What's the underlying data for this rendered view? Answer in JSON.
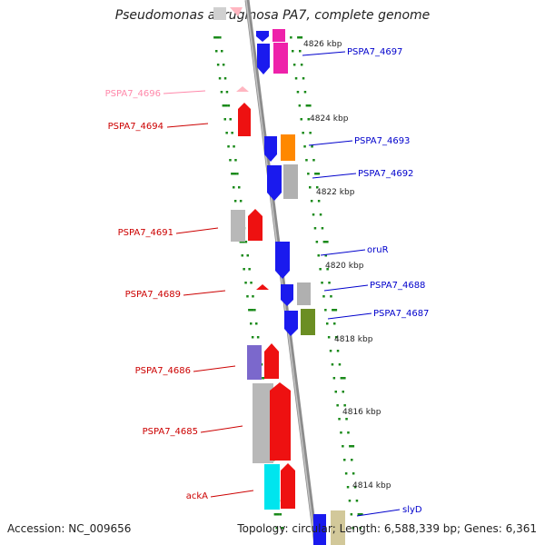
{
  "title": "Pseudomonas aeruginosa PA7, complete genome",
  "accession": "Accession: NC_009656",
  "summary": "Topology: circular; Length: 6,588,339 bp; Genes: 6,361",
  "colors": {
    "forward_label": "#0000cc",
    "reverse_label": "#cc0000",
    "backbone": "#888888",
    "ticks": "#1a8a1a"
  },
  "scale_labels": [
    "4826 kbp",
    "4824 kbp",
    "4822 kbp",
    "4820 kbp",
    "4818 kbp",
    "4816 kbp",
    "4814 kbp"
  ],
  "forward_genes": [
    {
      "name": "PSPA7_4697",
      "color": "#ee22aa"
    },
    {
      "name": "PSPA7_4693",
      "color": "#ff8800"
    },
    {
      "name": "PSPA7_4692",
      "color": "#b0b0b0"
    },
    {
      "name": "oruR",
      "color": "#1a1aee"
    },
    {
      "name": "PSPA7_4688",
      "color": "#b0b0b0"
    },
    {
      "name": "PSPA7_4687",
      "color": "#6b8e23"
    },
    {
      "name": "slyD",
      "color": "#d2c89a"
    }
  ],
  "reverse_genes": [
    {
      "name": "PSPA7_4696",
      "color": "#ffb6c1"
    },
    {
      "name": "PSPA7_4694",
      "color": "#ee1111"
    },
    {
      "name": "PSPA7_4691",
      "color": "#b8b8b8"
    },
    {
      "name": "PSPA7_4689",
      "color": "#ee1111"
    },
    {
      "name": "PSPA7_4686",
      "color": "#7b68cc"
    },
    {
      "name": "PSPA7_4685",
      "color": "#b8b8b8"
    },
    {
      "name": "ackA",
      "color": "#00e5ee"
    }
  ]
}
